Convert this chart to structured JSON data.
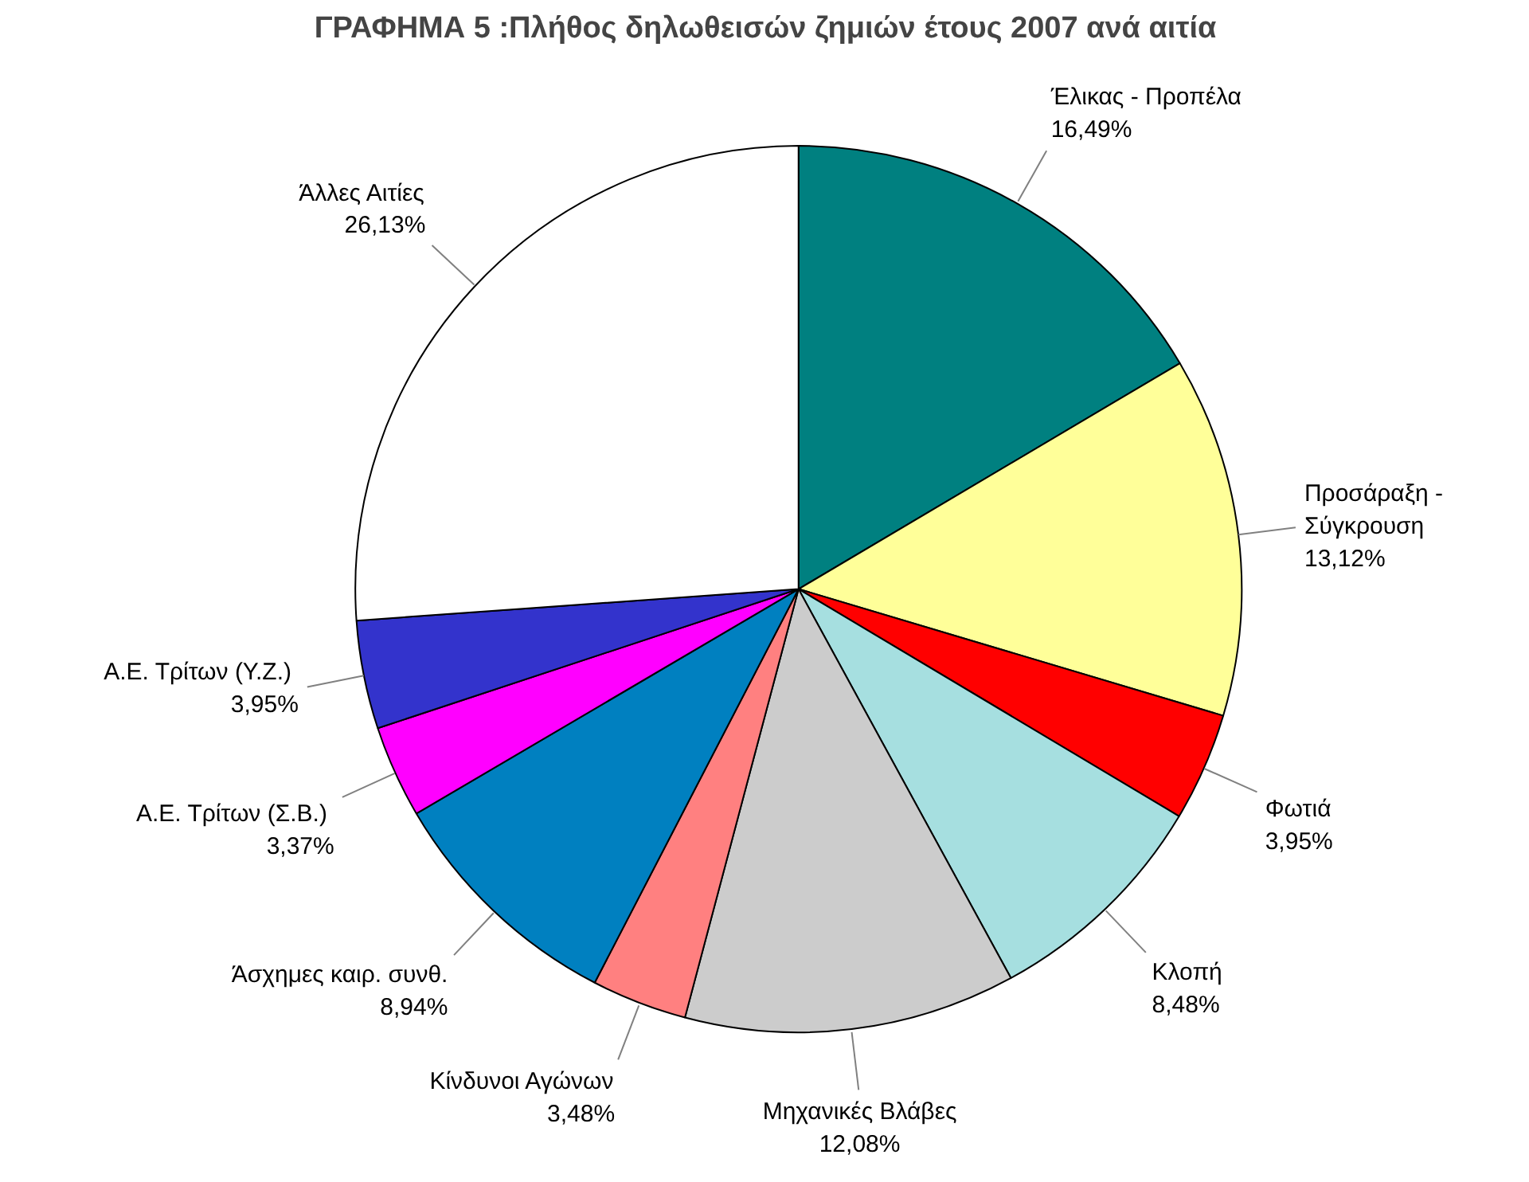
{
  "chart_data": {
    "type": "pie",
    "title": "ΓΡΑΦΗΜΑ 5 :Πλήθος δηλωθεισών ζημιών έτους 2007 ανά αιτία",
    "categories": [
      "Έλικας - Προπέλα",
      "Προσάραξη - Σύγκρουση",
      "Φωτιά",
      "Κλοπή",
      "Μηχανικές Βλάβες",
      "Κίνδυνοι Αγώνων",
      "Άσχημες καιρ. συνθ.",
      "Α.Ε. Τρίτων  (Σ.Β.)",
      "Α.Ε. Τρίτων  (Υ.Ζ.)",
      "Άλλες Αιτίες"
    ],
    "values": [
      16.49,
      13.12,
      3.95,
      8.48,
      12.08,
      3.48,
      8.94,
      3.37,
      3.95,
      26.13
    ],
    "value_labels": [
      "16,49%",
      "13,12%",
      "3,95%",
      "8,48%",
      "12,08%",
      "3,48%",
      "8,94%",
      "3,37%",
      "3,95%",
      "26,13%"
    ],
    "colors": [
      "#008080",
      "#ffff99",
      "#ff0000",
      "#a6dfe0",
      "#cccccc",
      "#ff8080",
      "#0080c0",
      "#ff00ff",
      "#3333cc",
      "#ffffff"
    ]
  }
}
